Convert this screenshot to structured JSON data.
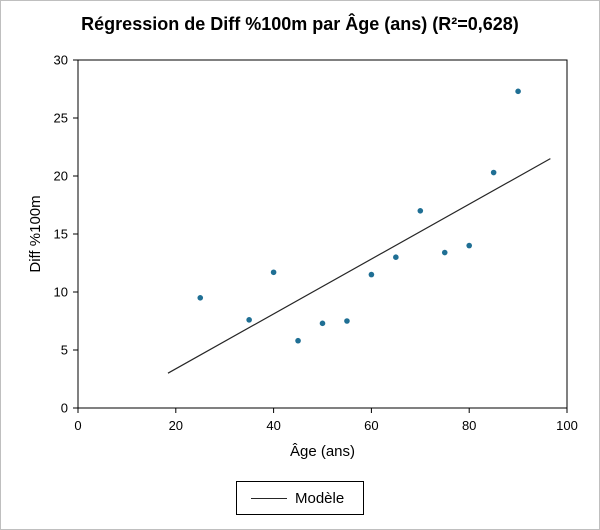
{
  "chart_data": {
    "type": "scatter",
    "title": "Régression de Diff %100m par Âge (ans) (R²=0,628)",
    "xlabel": "Âge (ans)",
    "ylabel": "Diff %100m",
    "xlim": [
      0,
      100
    ],
    "ylim": [
      0,
      30
    ],
    "xticks": [
      "0",
      "20",
      "40",
      "60",
      "80",
      "100"
    ],
    "yticks": [
      "0",
      "5",
      "10",
      "15",
      "20",
      "25",
      "30"
    ],
    "grid": false,
    "legend_position": "bottom",
    "series": [
      {
        "type": "scatter",
        "color": "#1f6f94",
        "points": [
          {
            "x": 25,
            "y": 9.5
          },
          {
            "x": 35,
            "y": 7.6
          },
          {
            "x": 40,
            "y": 11.7
          },
          {
            "x": 45,
            "y": 5.8
          },
          {
            "x": 50,
            "y": 7.3
          },
          {
            "x": 55,
            "y": 7.5
          },
          {
            "x": 60,
            "y": 11.5
          },
          {
            "x": 65,
            "y": 13.0
          },
          {
            "x": 70,
            "y": 17.0
          },
          {
            "x": 75,
            "y": 13.4
          },
          {
            "x": 80,
            "y": 14.0
          },
          {
            "x": 85,
            "y": 20.3
          },
          {
            "x": 90,
            "y": 27.3
          }
        ]
      },
      {
        "type": "line",
        "name": "Modèle",
        "color": "#262626",
        "points": [
          {
            "x": 18.4,
            "y": 3.0
          },
          {
            "x": 96.6,
            "y": 21.5
          }
        ]
      }
    ]
  }
}
